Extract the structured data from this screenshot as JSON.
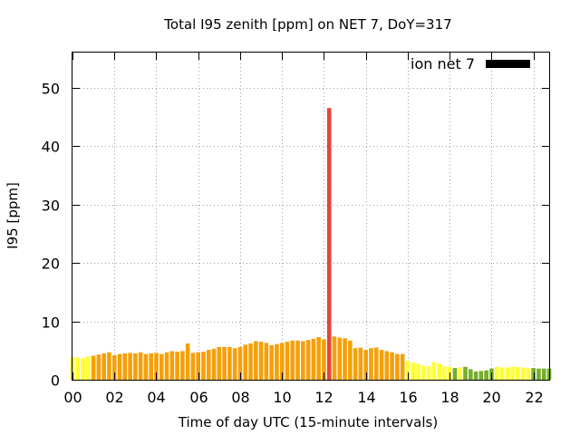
{
  "chart_data": {
    "type": "bar",
    "title": "Total I95 zenith [ppm] on NET 7, DoY=317",
    "xlabel": "Time of day UTC (15-minute intervals)",
    "ylabel": "I95 [ppm]",
    "xlim": [
      0,
      22.75
    ],
    "ylim": [
      0,
      56
    ],
    "grid": true,
    "legend": {
      "label": "ion net 7",
      "position": "top-right",
      "color": "#000000"
    },
    "x_ticks": [
      "00",
      "02",
      "04",
      "06",
      "08",
      "10",
      "12",
      "14",
      "16",
      "18",
      "20",
      "22"
    ],
    "y_ticks": [
      "0",
      "10",
      "20",
      "30",
      "40",
      "50"
    ],
    "bar_interval_hours": 0.25,
    "color_scale": {
      "green": "#76ad2c",
      "yellow": "#ffff33",
      "orange": "#f5a00a",
      "red": "#e8443a"
    },
    "series": [
      {
        "name": "ion net 7",
        "x": [
          0.0,
          0.25,
          0.5,
          0.75,
          1.0,
          1.25,
          1.5,
          1.75,
          2.0,
          2.25,
          2.5,
          2.75,
          3.0,
          3.25,
          3.5,
          3.75,
          4.0,
          4.25,
          4.5,
          4.75,
          5.0,
          5.25,
          5.5,
          5.75,
          6.0,
          6.25,
          6.5,
          6.75,
          7.0,
          7.25,
          7.5,
          7.75,
          8.0,
          8.25,
          8.5,
          8.75,
          9.0,
          9.25,
          9.5,
          9.75,
          10.0,
          10.25,
          10.5,
          10.75,
          11.0,
          11.25,
          11.5,
          11.75,
          12.0,
          12.25,
          12.5,
          12.75,
          13.0,
          13.25,
          13.5,
          13.75,
          14.0,
          14.25,
          14.5,
          14.75,
          15.0,
          15.25,
          15.5,
          15.75,
          16.0,
          16.25,
          16.5,
          16.75,
          17.0,
          17.25,
          17.5,
          17.75,
          18.0,
          18.25,
          18.5,
          18.75,
          19.0,
          19.25,
          19.5,
          19.75,
          20.0,
          20.25,
          20.5,
          20.75,
          21.0,
          21.25,
          21.5,
          21.75,
          22.0,
          22.25,
          22.5,
          22.75
        ],
        "values": [
          3.9,
          3.8,
          3.7,
          4.0,
          4.1,
          4.3,
          4.5,
          4.7,
          4.2,
          4.4,
          4.5,
          4.6,
          4.5,
          4.7,
          4.4,
          4.5,
          4.6,
          4.4,
          4.7,
          4.9,
          4.8,
          4.9,
          6.2,
          4.6,
          4.7,
          4.8,
          5.1,
          5.3,
          5.6,
          5.6,
          5.6,
          5.4,
          5.6,
          6.0,
          6.2,
          6.6,
          6.5,
          6.3,
          5.9,
          6.1,
          6.3,
          6.5,
          6.7,
          6.7,
          6.6,
          6.8,
          7.0,
          7.3,
          6.9,
          46.5,
          7.4,
          7.2,
          7.1,
          6.7,
          5.4,
          5.5,
          5.1,
          5.4,
          5.5,
          5.1,
          4.9,
          4.7,
          4.4,
          4.4,
          3.2,
          2.9,
          2.7,
          2.4,
          2.3,
          3.0,
          2.8,
          2.3,
          2.2,
          2.0,
          2.1,
          2.2,
          1.8,
          1.4,
          1.5,
          1.6,
          1.9,
          2.2,
          2.1,
          2.1,
          2.2,
          2.2,
          2.1,
          2.0,
          2.0,
          1.9,
          1.9,
          1.9
        ],
        "colors": [
          "yellow",
          "yellow",
          "yellow",
          "yellow",
          "orange",
          "orange",
          "orange",
          "orange",
          "orange",
          "orange",
          "orange",
          "orange",
          "orange",
          "orange",
          "orange",
          "orange",
          "orange",
          "orange",
          "orange",
          "orange",
          "orange",
          "orange",
          "orange",
          "orange",
          "orange",
          "orange",
          "orange",
          "orange",
          "orange",
          "orange",
          "orange",
          "orange",
          "orange",
          "orange",
          "orange",
          "orange",
          "orange",
          "orange",
          "orange",
          "orange",
          "orange",
          "orange",
          "orange",
          "orange",
          "orange",
          "orange",
          "orange",
          "orange",
          "orange",
          "red",
          "orange",
          "orange",
          "orange",
          "orange",
          "orange",
          "orange",
          "orange",
          "orange",
          "orange",
          "orange",
          "orange",
          "orange",
          "orange",
          "orange",
          "yellow",
          "yellow",
          "yellow",
          "yellow",
          "yellow",
          "yellow",
          "yellow",
          "yellow",
          "yellow",
          "green",
          "yellow",
          "green",
          "green",
          "green",
          "green",
          "green",
          "green",
          "yellow",
          "yellow",
          "yellow",
          "yellow",
          "yellow",
          "yellow",
          "yellow",
          "green",
          "green",
          "green",
          "green"
        ]
      }
    ]
  }
}
